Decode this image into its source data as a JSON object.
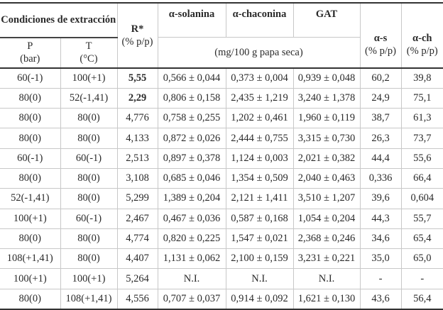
{
  "header": {
    "conditions": "Condiciones de extracción",
    "p": "P",
    "p_unit": "(bar)",
    "t": "T",
    "t_unit": "(°C)",
    "r": "R*",
    "r_unit": "(% p/p)",
    "solanina": "α-solanina",
    "chaconina": "α-chaconina",
    "gat": "GAT",
    "mg_unit": "(mg/100 g papa seca)",
    "as": "α-s",
    "as_unit": "(% p/p)",
    "ach": "α-ch",
    "ach_unit": "(% p/p)"
  },
  "rows": [
    {
      "p": "60(-1)",
      "t": "100(+1)",
      "r": "5,55",
      "r_bold": true,
      "sol": "0,566 ± 0,044",
      "cha": "0,373 ± 0,004",
      "gat": "0,939 ± 0,048",
      "as": "60,2",
      "ach": "39,8"
    },
    {
      "p": "80(0)",
      "t": "52(-1,41)",
      "r": "2,29",
      "r_bold": true,
      "sol": "0,806 ± 0,158",
      "cha": "2,435 ± 1,219",
      "gat": "3,240 ± 1,378",
      "as": "24,9",
      "ach": "75,1"
    },
    {
      "p": "80(0)",
      "t": "80(0)",
      "r": "4,776",
      "sol": "0,758 ± 0,255",
      "cha": "1,202 ± 0,461",
      "gat": "1,960 ± 0,119",
      "as": "38,7",
      "ach": "61,3"
    },
    {
      "p": "80(0)",
      "t": "80(0)",
      "r": "4,133",
      "sol": "0,872 ± 0,026",
      "cha": "2,444 ± 0,755",
      "gat": "3,315 ± 0,730",
      "as": "26,3",
      "ach": "73,7"
    },
    {
      "p": "60(-1)",
      "t": "60(-1)",
      "r": "2,513",
      "sol": "0,897 ± 0,378",
      "cha": "1,124 ± 0,003",
      "gat": "2,021 ± 0,382",
      "as": "44,4",
      "ach": "55,6"
    },
    {
      "p": "80(0)",
      "t": "80(0)",
      "r": "3,108",
      "sol": "0,685 ± 0,046",
      "cha": "1,354 ± 0,509",
      "gat": "2,040 ± 0,463",
      "as": "0,336",
      "ach": "66,4"
    },
    {
      "p": "52(-1,41)",
      "t": "80(0)",
      "r": "5,299",
      "sol": "1,389 ± 0,204",
      "cha": "2,121 ± 1,411",
      "gat": "3,510 ± 1,207",
      "as": "39,6",
      "ach": "0,604"
    },
    {
      "p": "100(+1)",
      "t": "60(-1)",
      "r": "2,467",
      "sol": "0,467 ± 0,036",
      "cha": "0,587 ± 0,168",
      "gat": "1,054 ± 0,204",
      "as": "44,3",
      "ach": "55,7"
    },
    {
      "p": "80(0)",
      "t": "80(0)",
      "r": "4,774",
      "sol": "0,820 ± 0,225",
      "cha": "1,547 ± 0,021",
      "gat": "2,368 ± 0,246",
      "as": "34,6",
      "ach": "65,4"
    },
    {
      "p": "108(+1,41)",
      "t": "80(0)",
      "r": "4,407",
      "sol": "1,131 ± 0,062",
      "cha": "2,100 ± 0,159",
      "gat": "3,231 ± 0,221",
      "as": "35,0",
      "ach": "65,0"
    },
    {
      "p": "100(+1)",
      "t": "100(+1)",
      "r": "5,264",
      "sol": "N.I.",
      "cha": "N.I.",
      "gat": "N.I.",
      "as": "-",
      "ach": "-"
    },
    {
      "p": "80(0)",
      "t": "108(+1,41)",
      "r": "4,556",
      "sol": "0,707 ± 0,037",
      "cha": "0,914 ± 0,092",
      "gat": "1,621 ± 0,130",
      "as": "43,6",
      "ach": "56,4"
    }
  ]
}
